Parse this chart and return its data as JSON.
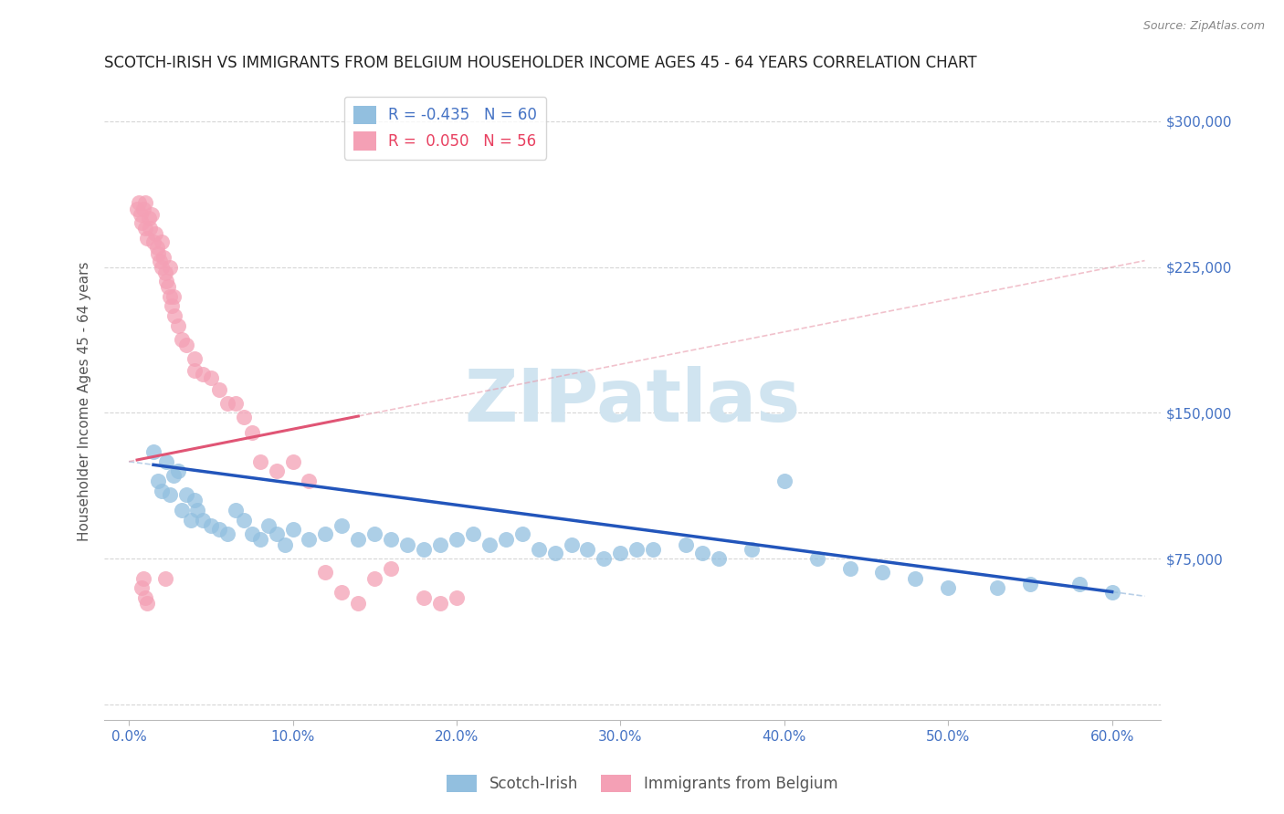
{
  "title": "SCOTCH-IRISH VS IMMIGRANTS FROM BELGIUM HOUSEHOLDER INCOME AGES 45 - 64 YEARS CORRELATION CHART",
  "source": "Source: ZipAtlas.com",
  "ylabel": "Householder Income Ages 45 - 64 years",
  "xlabel_ticks": [
    "0.0%",
    "10.0%",
    "20.0%",
    "30.0%",
    "40.0%",
    "50.0%",
    "60.0%"
  ],
  "xlabel_vals": [
    0.0,
    10.0,
    20.0,
    30.0,
    40.0,
    50.0,
    60.0
  ],
  "yticks": [
    0,
    75000,
    150000,
    225000,
    300000
  ],
  "ytick_labels": [
    "",
    "$75,000",
    "$150,000",
    "$225,000",
    "$300,000"
  ],
  "xlim": [
    -1.5,
    63
  ],
  "ylim": [
    -8000,
    320000
  ],
  "blue_color": "#92bfdf",
  "pink_color": "#f4a0b5",
  "blue_line_color": "#2255bb",
  "pink_line_color": "#e05575",
  "pink_dashed_color": "#e899aa",
  "blue_dashed_color": "#8ab0d8",
  "watermark_color": "#d0e4f0",
  "background_color": "#ffffff",
  "grid_color": "#cccccc",
  "title_color": "#222222",
  "axis_label_color": "#555555",
  "tick_color": "#4472c4",
  "source_color": "#888888",
  "legend_text_blue": "R = -0.435   N = 60",
  "legend_text_pink": "R =  0.050   N = 56",
  "blue_scatter_x": [
    1.5,
    1.8,
    2.0,
    2.3,
    2.5,
    2.7,
    3.0,
    3.2,
    3.5,
    3.8,
    4.0,
    4.2,
    4.5,
    5.0,
    5.5,
    6.0,
    6.5,
    7.0,
    7.5,
    8.0,
    8.5,
    9.0,
    9.5,
    10.0,
    11.0,
    12.0,
    13.0,
    14.0,
    15.0,
    16.0,
    17.0,
    18.0,
    19.0,
    20.0,
    21.0,
    22.0,
    23.0,
    24.0,
    25.0,
    26.0,
    27.0,
    28.0,
    29.0,
    30.0,
    31.0,
    32.0,
    34.0,
    35.0,
    36.0,
    38.0,
    40.0,
    42.0,
    44.0,
    46.0,
    48.0,
    50.0,
    53.0,
    55.0,
    58.0,
    60.0
  ],
  "blue_scatter_y": [
    130000,
    115000,
    110000,
    125000,
    108000,
    118000,
    120000,
    100000,
    108000,
    95000,
    105000,
    100000,
    95000,
    92000,
    90000,
    88000,
    100000,
    95000,
    88000,
    85000,
    92000,
    88000,
    82000,
    90000,
    85000,
    88000,
    92000,
    85000,
    88000,
    85000,
    82000,
    80000,
    82000,
    85000,
    88000,
    82000,
    85000,
    88000,
    80000,
    78000,
    82000,
    80000,
    75000,
    78000,
    80000,
    80000,
    82000,
    78000,
    75000,
    80000,
    115000,
    75000,
    70000,
    68000,
    65000,
    60000,
    60000,
    62000,
    62000,
    58000
  ],
  "pink_scatter_x": [
    0.5,
    0.6,
    0.7,
    0.8,
    0.9,
    1.0,
    1.0,
    1.1,
    1.2,
    1.3,
    1.4,
    1.5,
    1.6,
    1.7,
    1.8,
    1.9,
    2.0,
    2.0,
    2.1,
    2.2,
    2.3,
    2.4,
    2.5,
    2.5,
    2.6,
    2.7,
    2.8,
    3.0,
    3.2,
    3.5,
    4.0,
    4.0,
    4.5,
    5.0,
    5.5,
    6.0,
    6.5,
    7.0,
    7.5,
    8.0,
    9.0,
    10.0,
    11.0,
    12.0,
    13.0,
    14.0,
    15.0,
    16.0,
    18.0,
    19.0,
    20.0,
    0.8,
    0.9,
    1.0,
    1.1,
    2.2
  ],
  "pink_scatter_y": [
    255000,
    258000,
    252000,
    248000,
    255000,
    245000,
    258000,
    240000,
    250000,
    245000,
    252000,
    238000,
    242000,
    235000,
    232000,
    228000,
    238000,
    225000,
    230000,
    222000,
    218000,
    215000,
    225000,
    210000,
    205000,
    210000,
    200000,
    195000,
    188000,
    185000,
    178000,
    172000,
    170000,
    168000,
    162000,
    155000,
    155000,
    148000,
    140000,
    125000,
    120000,
    125000,
    115000,
    68000,
    58000,
    52000,
    65000,
    70000,
    55000,
    52000,
    55000,
    60000,
    65000,
    55000,
    52000,
    65000
  ],
  "bottom_legend_labels": [
    "Scotch-Irish",
    "Immigrants from Belgium"
  ]
}
